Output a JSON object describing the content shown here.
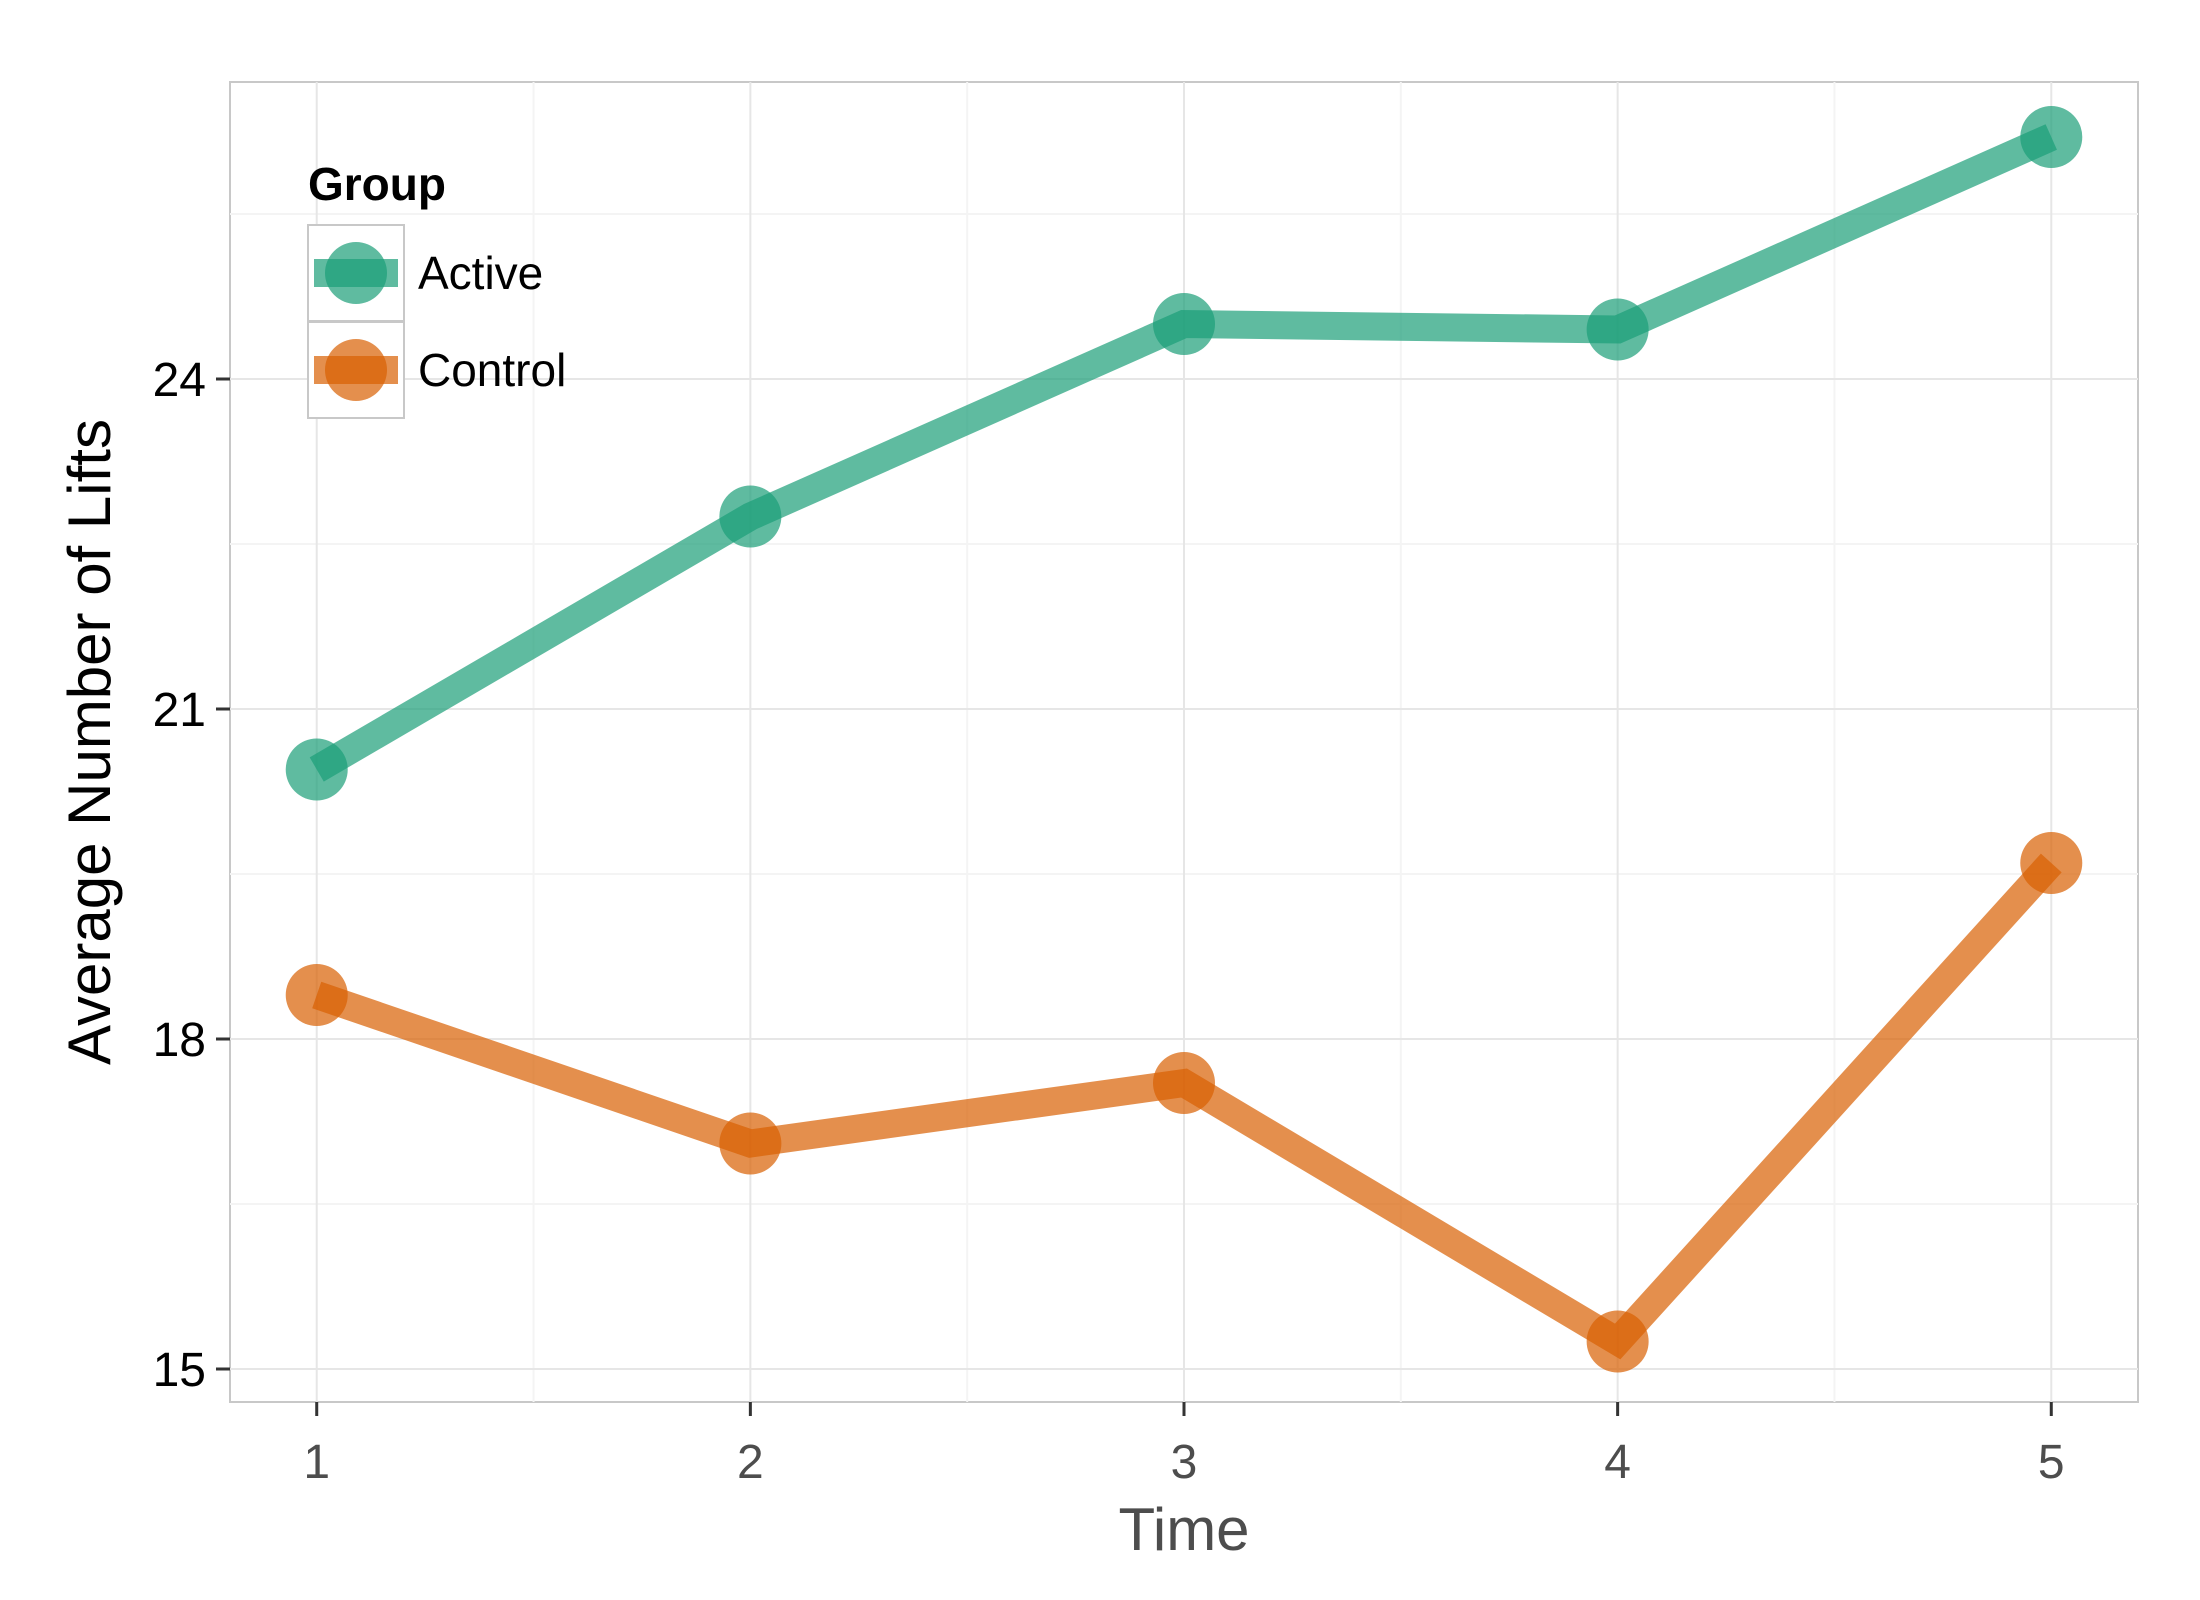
{
  "chart_data": {
    "type": "line",
    "x": [
      1,
      2,
      3,
      4,
      5
    ],
    "xlabel": "Time",
    "ylabel": "Average Number of Lifts",
    "xlim": [
      0.8,
      5.2
    ],
    "ylim": [
      14.7,
      26.7
    ],
    "xticks": [
      "1",
      "2",
      "3",
      "4",
      "5"
    ],
    "yticks": [
      "15",
      "18",
      "21",
      "24"
    ],
    "grid": true,
    "legend": {
      "title": "Group",
      "position": "top-left",
      "entries": [
        "Active",
        "Control"
      ]
    },
    "series": [
      {
        "name": "Active",
        "color": "#1B9E77",
        "values": [
          20.45,
          22.75,
          24.5,
          24.45,
          26.2
        ]
      },
      {
        "name": "Control",
        "color": "#D95F02",
        "values": [
          18.4,
          17.05,
          17.6,
          15.25,
          19.6
        ]
      }
    ]
  }
}
